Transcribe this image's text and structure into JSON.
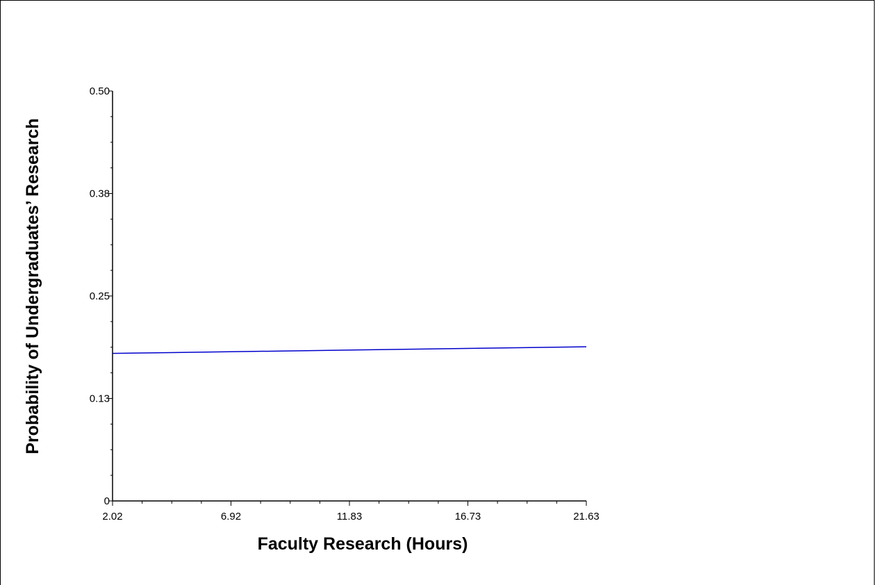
{
  "chart_data": {
    "type": "line",
    "title": "",
    "xlabel": "Faculty Research (Hours)",
    "ylabel": "Probability of Undergraduates’ Research",
    "x_ticks": [
      "2.02",
      "6.92",
      "11.83",
      "16.73",
      "21.63"
    ],
    "y_ticks": [
      "0",
      "0.13",
      "0.25",
      "0.38",
      "0.50"
    ],
    "xlim": [
      2.02,
      21.63
    ],
    "ylim": [
      0,
      0.5
    ],
    "grid": false,
    "series": [
      {
        "x": [
          2.02,
          21.63
        ],
        "y": [
          0.18,
          0.188
        ]
      }
    ],
    "colors": {
      "line": "#0000cc",
      "axis": "#000000"
    }
  }
}
